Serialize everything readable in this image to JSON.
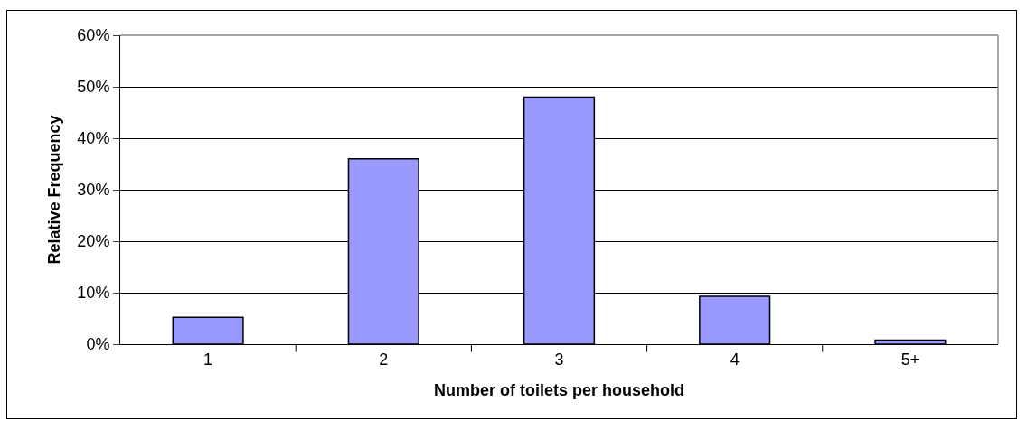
{
  "chart_data": {
    "type": "bar",
    "xlabel": "Number of toilets per household",
    "ylabel": "Relative Frequency",
    "categories": [
      "1",
      "2",
      "3",
      "4",
      "5+"
    ],
    "values": [
      5.2,
      36,
      48,
      9.3,
      0.8
    ],
    "color": "#9999ff",
    "ylim": [
      0,
      60
    ],
    "yticks": [
      {
        "value": 0,
        "label": "0%"
      },
      {
        "value": 10,
        "label": "10%"
      },
      {
        "value": 20,
        "label": "20%"
      },
      {
        "value": 30,
        "label": "30%"
      },
      {
        "value": 40,
        "label": "40%"
      },
      {
        "value": 50,
        "label": "50%"
      },
      {
        "value": 60,
        "label": "60%"
      }
    ],
    "grid": "y",
    "legend": false
  }
}
